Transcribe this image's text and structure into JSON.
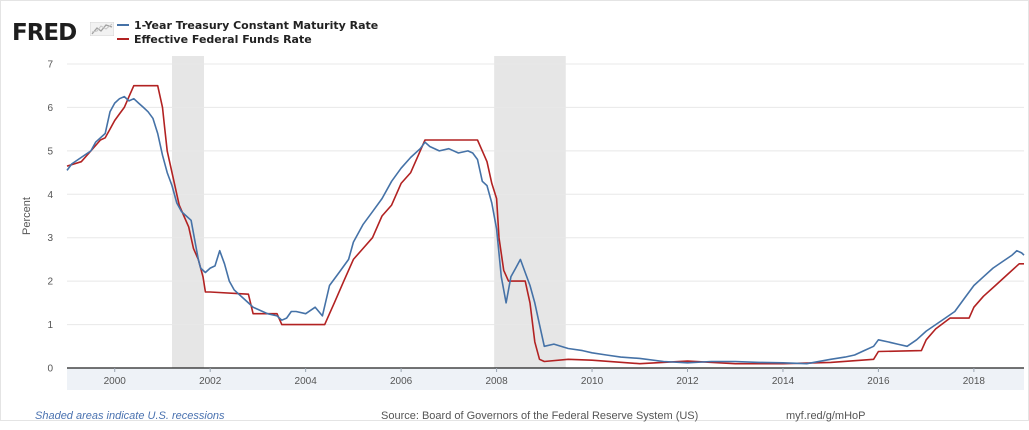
{
  "header": {
    "logo": "FRED",
    "logo_icon": "line-chart-icon"
  },
  "chart_data": {
    "type": "line",
    "ylabel": "Percent",
    "xlabel": "",
    "xlim": [
      1999.0,
      2019.05
    ],
    "ylim": [
      0,
      7
    ],
    "grid": true,
    "x_ticks": [
      2000,
      2002,
      2004,
      2006,
      2008,
      2010,
      2012,
      2014,
      2016,
      2018
    ],
    "x_tick_labels": [
      "2000",
      "2002",
      "2004",
      "2006",
      "2008",
      "2010",
      "2012",
      "2014",
      "2016",
      "2018"
    ],
    "y_ticks": [
      0,
      1,
      2,
      3,
      4,
      5,
      6,
      7
    ],
    "y_tick_labels": [
      "0",
      "1",
      "2",
      "3",
      "4",
      "5",
      "6",
      "7"
    ],
    "recessions": [
      [
        2001.2,
        2001.87
      ],
      [
        2007.95,
        2009.45
      ]
    ],
    "legend_position": "top-left",
    "series": [
      {
        "name": "1-Year Treasury Constant Maturity Rate",
        "color": "#4572a7",
        "x": [
          1999.0,
          1999.1,
          1999.3,
          1999.5,
          1999.6,
          1999.8,
          1999.9,
          2000.0,
          2000.1,
          2000.2,
          2000.3,
          2000.4,
          2000.5,
          2000.6,
          2000.7,
          2000.8,
          2000.9,
          2001.0,
          2001.1,
          2001.2,
          2001.3,
          2001.4,
          2001.5,
          2001.6,
          2001.7,
          2001.75,
          2001.8,
          2001.9,
          2002.0,
          2002.1,
          2002.2,
          2002.3,
          2002.4,
          2002.5,
          2002.6,
          2002.7,
          2002.8,
          2002.9,
          2003.0,
          2003.2,
          2003.4,
          2003.5,
          2003.6,
          2003.7,
          2003.8,
          2004.0,
          2004.2,
          2004.35,
          2004.5,
          2004.7,
          2004.9,
          2005.0,
          2005.2,
          2005.4,
          2005.6,
          2005.8,
          2006.0,
          2006.2,
          2006.4,
          2006.5,
          2006.6,
          2006.8,
          2007.0,
          2007.2,
          2007.4,
          2007.5,
          2007.6,
          2007.7,
          2007.8,
          2007.9,
          2008.0,
          2008.1,
          2008.2,
          2008.3,
          2008.4,
          2008.5,
          2008.6,
          2008.7,
          2008.8,
          2008.9,
          2009.0,
          2009.2,
          2009.5,
          2009.8,
          2010.0,
          2010.3,
          2010.6,
          2011.0,
          2011.5,
          2012.0,
          2012.5,
          2013.0,
          2013.5,
          2014.0,
          2014.5,
          2015.0,
          2015.3,
          2015.5,
          2015.7,
          2015.9,
          2016.0,
          2016.2,
          2016.4,
          2016.6,
          2016.8,
          2017.0,
          2017.2,
          2017.4,
          2017.6,
          2017.8,
          2018.0,
          2018.2,
          2018.4,
          2018.6,
          2018.8,
          2018.9,
          2019.0,
          2019.05
        ],
        "values": [
          4.55,
          4.7,
          4.85,
          5.0,
          5.2,
          5.4,
          5.9,
          6.1,
          6.2,
          6.25,
          6.15,
          6.2,
          6.1,
          6.0,
          5.9,
          5.75,
          5.4,
          4.9,
          4.5,
          4.2,
          3.8,
          3.6,
          3.5,
          3.4,
          2.8,
          2.5,
          2.3,
          2.2,
          2.3,
          2.35,
          2.7,
          2.4,
          2.0,
          1.8,
          1.7,
          1.6,
          1.5,
          1.4,
          1.35,
          1.25,
          1.2,
          1.1,
          1.15,
          1.3,
          1.3,
          1.25,
          1.4,
          1.2,
          1.9,
          2.2,
          2.5,
          2.9,
          3.3,
          3.6,
          3.9,
          4.3,
          4.6,
          4.85,
          5.05,
          5.2,
          5.1,
          5.0,
          5.05,
          4.95,
          5.0,
          4.95,
          4.8,
          4.3,
          4.2,
          3.8,
          3.2,
          2.1,
          1.5,
          2.1,
          2.3,
          2.5,
          2.2,
          1.9,
          1.5,
          1.0,
          0.5,
          0.55,
          0.45,
          0.4,
          0.35,
          0.3,
          0.25,
          0.22,
          0.15,
          0.12,
          0.15,
          0.15,
          0.13,
          0.12,
          0.1,
          0.2,
          0.25,
          0.3,
          0.4,
          0.5,
          0.65,
          0.6,
          0.55,
          0.5,
          0.65,
          0.85,
          1.0,
          1.15,
          1.3,
          1.6,
          1.9,
          2.1,
          2.3,
          2.45,
          2.6,
          2.7,
          2.65,
          2.6
        ]
      },
      {
        "name": "Effective Federal Funds Rate",
        "color": "#b22222",
        "x": [
          1999.0,
          1999.3,
          1999.5,
          1999.7,
          1999.8,
          1999.9,
          2000.0,
          2000.1,
          2000.2,
          2000.3,
          2000.4,
          2000.45,
          2000.5,
          2000.9,
          2001.0,
          2001.05,
          2001.1,
          2001.2,
          2001.3,
          2001.35,
          2001.45,
          2001.55,
          2001.65,
          2001.75,
          2001.85,
          2001.9,
          2002.0,
          2002.8,
          2002.9,
          2003.4,
          2003.5,
          2004.4,
          2004.5,
          2004.6,
          2004.8,
          2005.0,
          2005.2,
          2005.4,
          2005.6,
          2005.8,
          2006.0,
          2006.2,
          2006.4,
          2006.5,
          2007.6,
          2007.7,
          2007.8,
          2007.9,
          2008.0,
          2008.05,
          2008.15,
          2008.25,
          2008.3,
          2008.6,
          2008.7,
          2008.8,
          2008.9,
          2009.0,
          2009.5,
          2010.0,
          2011.0,
          2012.0,
          2013.0,
          2014.0,
          2015.0,
          2015.9,
          2016.0,
          2016.9,
          2017.0,
          2017.2,
          2017.5,
          2017.9,
          2018.0,
          2018.2,
          2018.45,
          2018.7,
          2018.95,
          2019.05
        ],
        "values": [
          4.65,
          4.75,
          5.0,
          5.25,
          5.3,
          5.5,
          5.7,
          5.85,
          6.0,
          6.25,
          6.5,
          6.5,
          6.5,
          6.5,
          6.0,
          5.5,
          5.0,
          4.5,
          4.0,
          3.75,
          3.5,
          3.25,
          2.75,
          2.5,
          2.1,
          1.75,
          1.75,
          1.7,
          1.25,
          1.25,
          1.0,
          1.0,
          1.25,
          1.5,
          2.0,
          2.5,
          2.75,
          3.0,
          3.5,
          3.75,
          4.25,
          4.5,
          5.0,
          5.25,
          5.25,
          5.0,
          4.75,
          4.25,
          3.9,
          3.0,
          2.25,
          2.0,
          2.0,
          2.0,
          1.5,
          0.6,
          0.2,
          0.15,
          0.2,
          0.18,
          0.1,
          0.16,
          0.1,
          0.1,
          0.13,
          0.2,
          0.38,
          0.4,
          0.65,
          0.9,
          1.15,
          1.15,
          1.4,
          1.65,
          1.9,
          2.15,
          2.4,
          2.4
        ]
      }
    ]
  },
  "footer": {
    "note": "Shaded areas indicate U.S. recessions",
    "source": "Source: Board of Governors of the Federal Reserve System (US)",
    "shortlink": "myf.red/g/mHoP"
  }
}
